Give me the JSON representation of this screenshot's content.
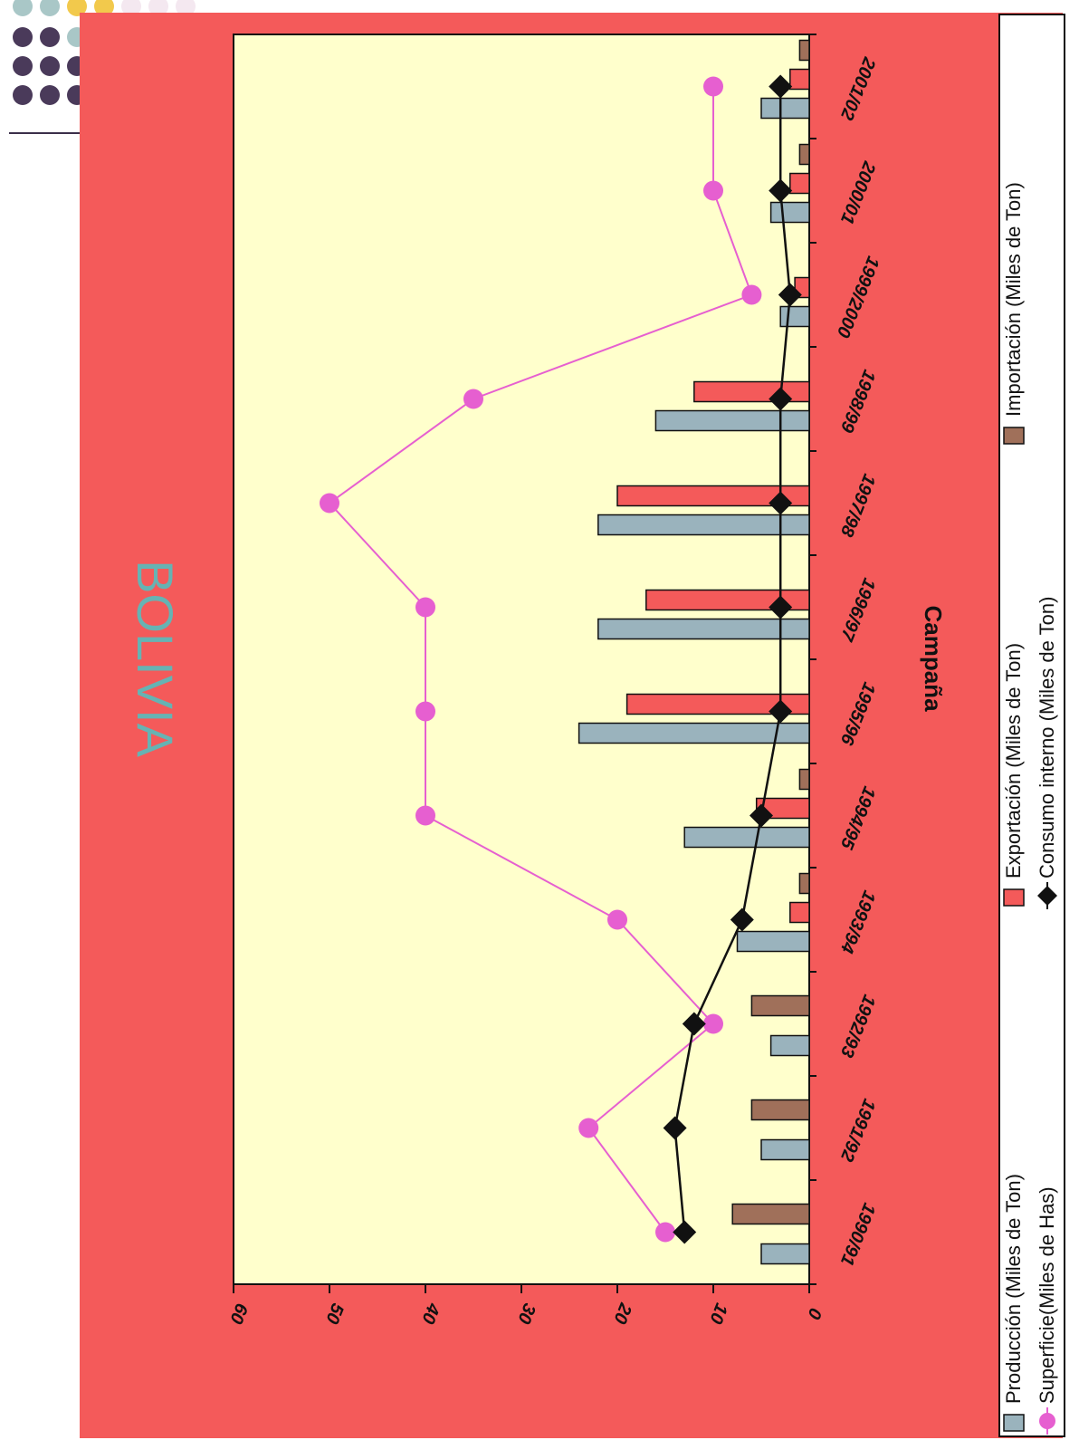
{
  "colors": {
    "background": "#f45a5a",
    "plot_area": "#ffffcc",
    "produccion": "#9ab3bd",
    "exportacion": "#f45a5a",
    "importacion": "#a0705a",
    "superficie": "#e65fd0",
    "consumo": "#111111",
    "title": "#66b3b3",
    "dots_row1": [
      "#a9c7c7",
      "#a9c7c7",
      "#f2c94c",
      "#f2c94c",
      "#f4e8f0",
      "#f4e8f0",
      "#f4e8f0"
    ],
    "dots_purple": "#4a3a5a",
    "dots_teal": "#a9c7c7"
  },
  "chart_data": {
    "type": "bar",
    "orientation": "rotated-90-clockwise",
    "title": "BOLIVIA",
    "xlabel": "Campaña",
    "ylabel": "",
    "ylim": [
      0,
      60
    ],
    "yticks": [
      0,
      10,
      20,
      30,
      40,
      50,
      60
    ],
    "categories": [
      "1990/91",
      "1991/92",
      "1992/93",
      "1993/94",
      "1994/95",
      "1995/96",
      "1996/97",
      "1997/98",
      "1998/99",
      "1999/2000",
      "2000/01",
      "2001/02"
    ],
    "series": [
      {
        "name": "Producción (Miles de Ton)",
        "kind": "bar",
        "color": "#9ab3bd",
        "values": [
          5,
          5,
          4,
          7.5,
          13,
          24,
          22,
          22,
          16,
          3,
          4,
          5
        ]
      },
      {
        "name": "Exportación (Miles de Ton)",
        "kind": "bar",
        "color": "#f45a5a",
        "values": [
          0,
          0,
          0,
          2,
          5.5,
          19,
          17,
          20,
          12,
          1.5,
          2,
          2
        ]
      },
      {
        "name": "Importación (Miles de Ton)",
        "kind": "bar",
        "color": "#a0705a",
        "values": [
          8,
          6,
          6,
          1,
          1,
          0,
          0,
          0,
          0,
          0,
          1,
          1
        ]
      },
      {
        "name": "Superficie(Miles de Has)",
        "kind": "line",
        "color": "#e65fd0",
        "marker": "circle",
        "values": [
          15,
          23,
          10,
          20,
          40,
          40,
          40,
          50,
          35,
          6,
          10,
          10
        ]
      },
      {
        "name": "Consumo interno (Miles de Ton)",
        "kind": "line",
        "color": "#111111",
        "marker": "diamond",
        "values": [
          13,
          14,
          12,
          7,
          5,
          3,
          3,
          3,
          3,
          2,
          3,
          3
        ]
      }
    ],
    "legend_position": "right",
    "grid": false
  }
}
